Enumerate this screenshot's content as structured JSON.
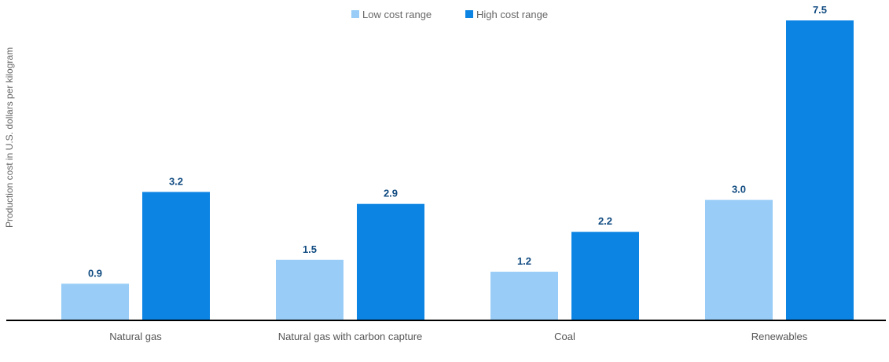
{
  "chart_data": {
    "type": "bar",
    "categories": [
      "Natural gas",
      "Natural gas with carbon capture",
      "Coal",
      "Renewables"
    ],
    "series": [
      {
        "name": "Low cost range",
        "values": [
          0.9,
          1.5,
          1.2,
          3.0
        ],
        "labels": [
          "0.9",
          "1.5",
          "1.2",
          "3.0"
        ],
        "color": "#99cdf7"
      },
      {
        "name": "High cost range",
        "values": [
          3.2,
          2.9,
          2.2,
          7.5
        ],
        "labels": [
          "3.2",
          "2.9",
          "2.2",
          "7.5"
        ],
        "color": "#0c84e4"
      }
    ],
    "ylabel": "Production cost in U.S. dollars per kilogram",
    "ylim": [
      0,
      7.5
    ],
    "grid": false,
    "legend": "top-center"
  },
  "colors": {
    "axis": "#000000",
    "value_label": "#0f4a80"
  }
}
